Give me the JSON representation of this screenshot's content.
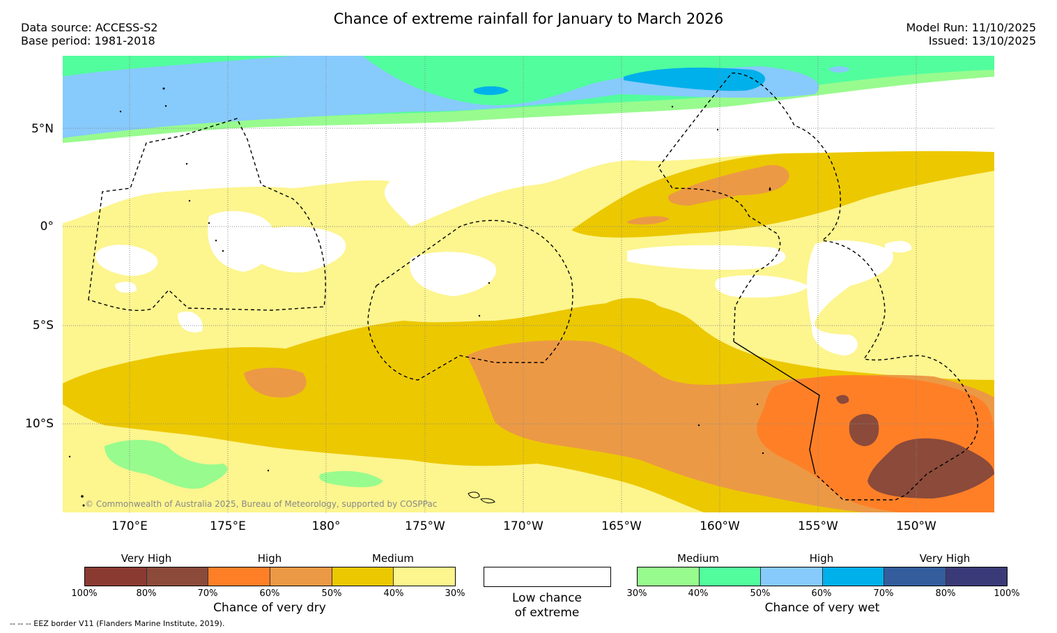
{
  "header": {
    "title": "Chance of extreme rainfall for January to March 2026",
    "data_source": "Data source: ACCESS-S2",
    "base_period": "Base period: 1981-2018",
    "model_run": "Model Run: 11/10/2025",
    "issued": "Issued: 13/10/2025"
  },
  "map": {
    "lat_labels": [
      "5°N",
      "0°",
      "5°S",
      "10°S"
    ],
    "lon_labels": [
      "170°E",
      "175°E",
      "180°",
      "175°W",
      "170°W",
      "165°W",
      "160°W",
      "155°W",
      "150°W"
    ],
    "copyright": "© Commonwealth of Australia 2025, Bureau of Meteorology, supported by COSPPac"
  },
  "legend": {
    "dry": {
      "heads": [
        "Very High",
        "High",
        "Medium"
      ],
      "ticks": [
        "100%",
        "80%",
        "70%",
        "60%",
        "50%",
        "40%",
        "30%"
      ],
      "colors": [
        "#8b3a32",
        "#8b4a3a",
        "#ff7f27",
        "#ec9945",
        "#ecc800",
        "#fdf58e"
      ],
      "caption": "Chance of very dry"
    },
    "low": {
      "caption_line1": "Low chance",
      "caption_line2": "of extreme"
    },
    "wet": {
      "heads": [
        "Medium",
        "High",
        "Very High"
      ],
      "ticks": [
        "30%",
        "40%",
        "50%",
        "60%",
        "70%",
        "80%",
        "100%"
      ],
      "colors": [
        "#98fb8e",
        "#52fd9e",
        "#87cafc",
        "#00b0ea",
        "#335d9c",
        "#3a3a78"
      ],
      "caption": "Chance of very wet"
    }
  },
  "footer": {
    "eez_note": "-- -- -- EEZ border V11 (Flanders Marine Institute, 2019)."
  }
}
